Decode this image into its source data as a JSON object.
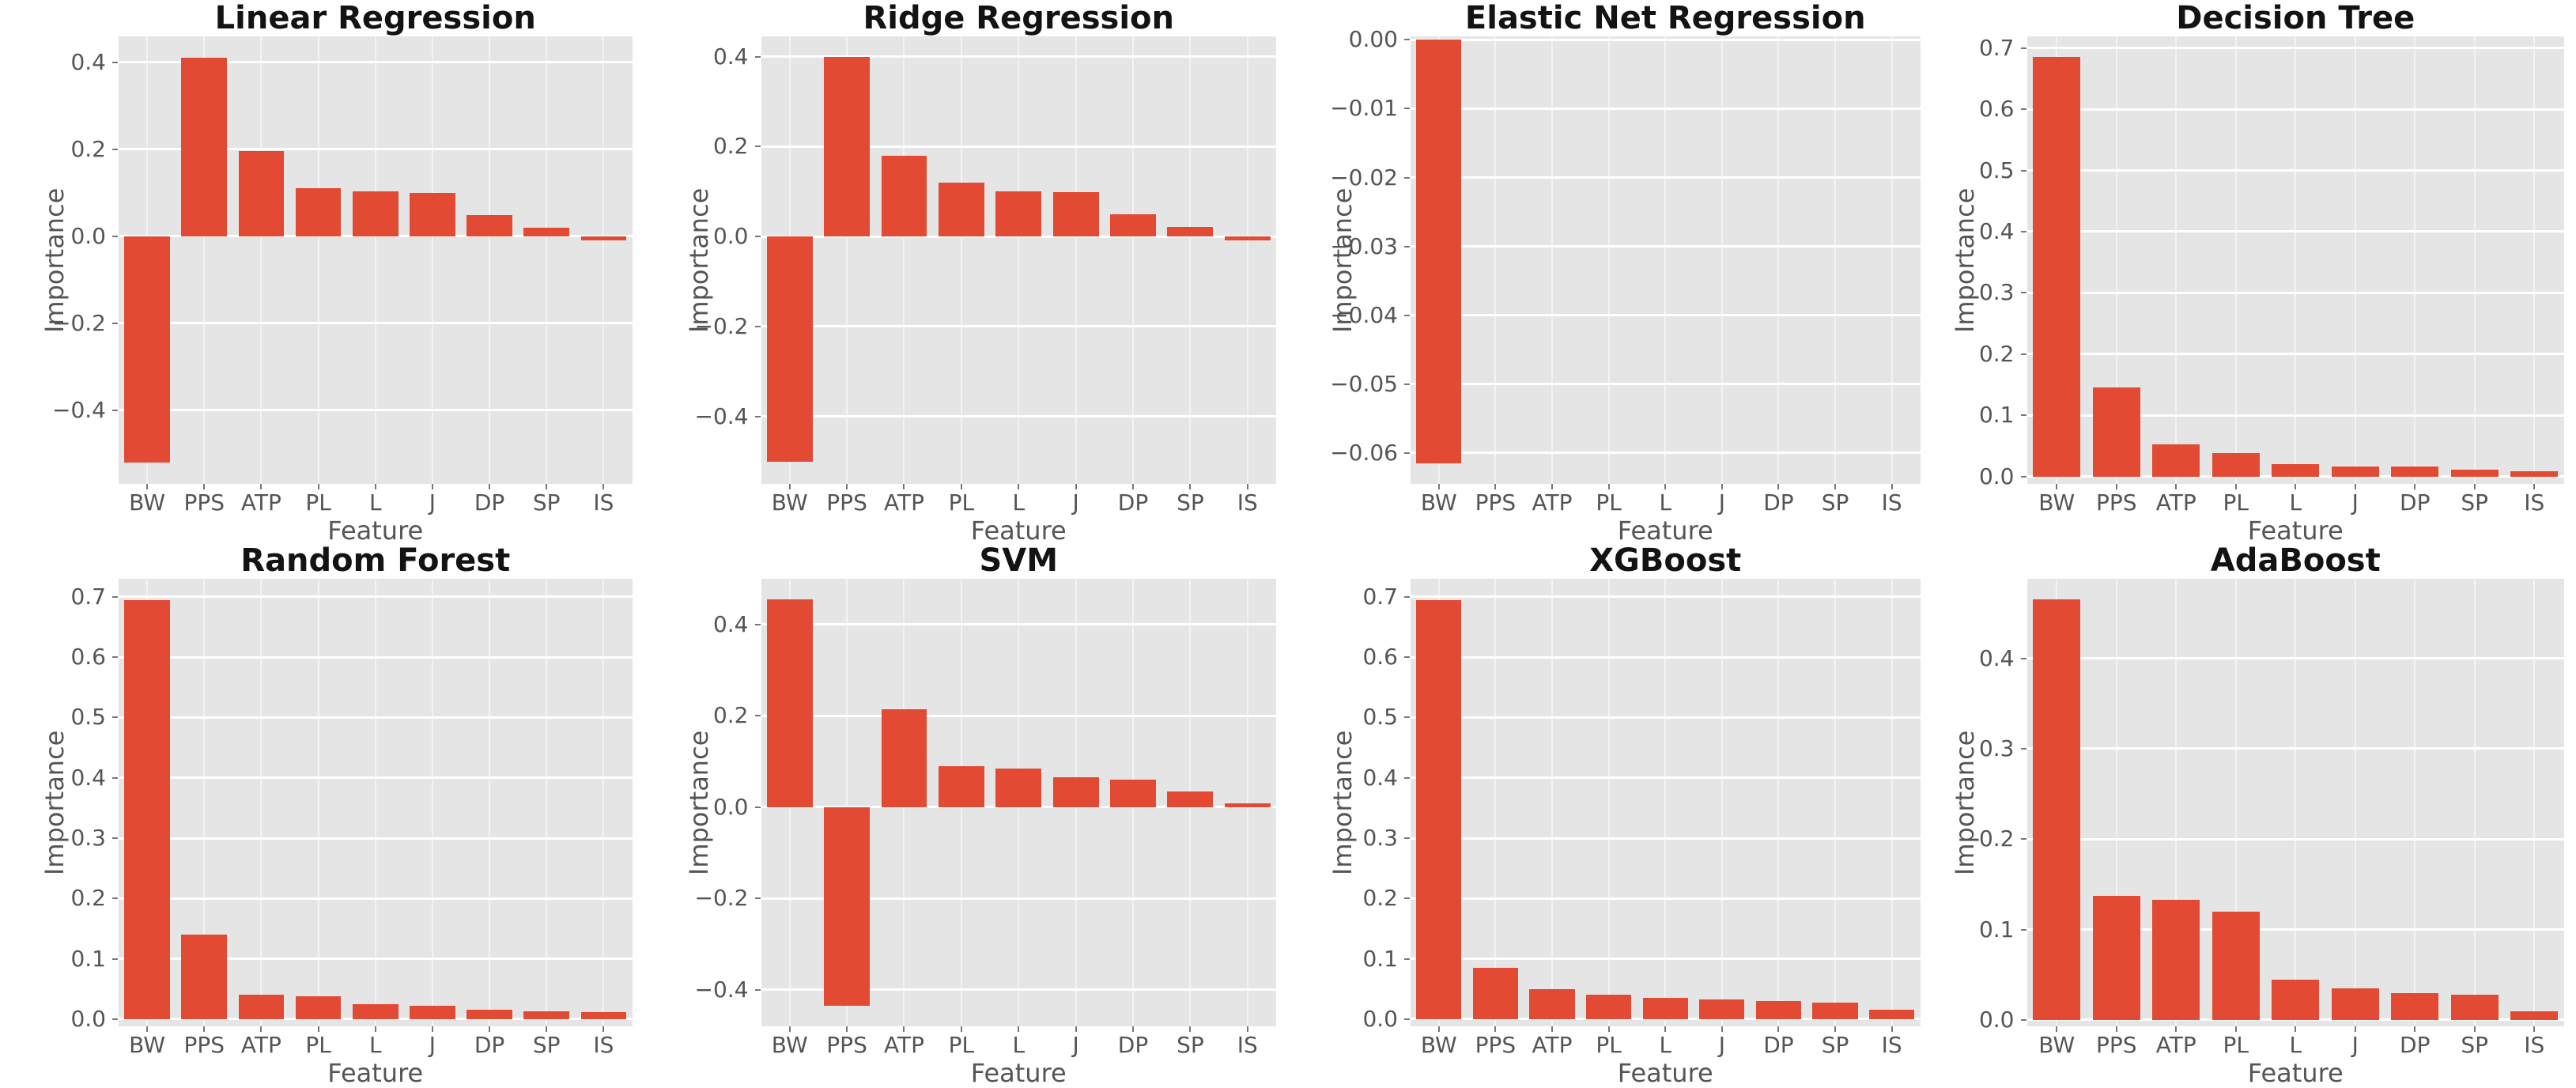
{
  "figure": {
    "kind": "feature-importance-comparison",
    "rows": 2,
    "cols": 4,
    "colors": {
      "figure_background": "#ffffff",
      "panel_background": "#e5e5e5",
      "bar": "#e24a33",
      "grid": "#ffffff",
      "tick_text": "#555555",
      "axis_label_text": "#555555",
      "title_text": "#131313"
    }
  },
  "chart_data": [
    {
      "type": "bar",
      "title": "Linear Regression",
      "xlabel": "Feature",
      "ylabel": "Importance",
      "categories": [
        "BW",
        "PPS",
        "ATP",
        "PL",
        "L",
        "J",
        "DP",
        "SP",
        "IS"
      ],
      "values": [
        -0.52,
        0.41,
        0.197,
        0.11,
        0.103,
        0.1,
        0.048,
        0.02,
        -0.01
      ],
      "ylim": [
        -0.57,
        0.46
      ],
      "yticks": [
        0.4,
        0.2,
        0.0,
        -0.2,
        -0.4
      ],
      "ytick_labels": [
        "0.4",
        "0.2",
        "0.0",
        "−0.2",
        "−0.4"
      ],
      "grid": true,
      "legend": "none"
    },
    {
      "type": "bar",
      "title": "Ridge Regression",
      "xlabel": "Feature",
      "ylabel": "Importance",
      "categories": [
        "BW",
        "PPS",
        "ATP",
        "PL",
        "L",
        "J",
        "DP",
        "SP",
        "IS"
      ],
      "values": [
        -0.5,
        0.4,
        0.18,
        0.12,
        0.1,
        0.098,
        0.05,
        0.021,
        -0.008
      ],
      "ylim": [
        -0.55,
        0.445
      ],
      "yticks": [
        0.4,
        0.2,
        0.0,
        -0.2,
        -0.4
      ],
      "ytick_labels": [
        "0.4",
        "0.2",
        "0.0",
        "−0.2",
        "−0.4"
      ],
      "grid": true,
      "legend": "none"
    },
    {
      "type": "bar",
      "title": "Elastic Net Regression",
      "xlabel": "Feature",
      "ylabel": "Importance",
      "categories": [
        "BW",
        "PPS",
        "ATP",
        "PL",
        "L",
        "J",
        "DP",
        "SP",
        "IS"
      ],
      "values": [
        -0.0615,
        0,
        0,
        0,
        0,
        0,
        0,
        0,
        0
      ],
      "ylim": [
        -0.0645,
        0.0005
      ],
      "yticks": [
        0.0,
        -0.01,
        -0.02,
        -0.03,
        -0.04,
        -0.05,
        -0.06
      ],
      "ytick_labels": [
        "0.00",
        "−0.01",
        "−0.02",
        "−0.03",
        "−0.04",
        "−0.05",
        "−0.06"
      ],
      "grid": true,
      "legend": "none"
    },
    {
      "type": "bar",
      "title": "Decision Tree",
      "xlabel": "Feature",
      "ylabel": "Importance",
      "categories": [
        "BW",
        "PPS",
        "ATP",
        "PL",
        "L",
        "J",
        "DP",
        "SP",
        "IS"
      ],
      "values": [
        0.685,
        0.145,
        0.052,
        0.039,
        0.02,
        0.016,
        0.017,
        0.011,
        0.009
      ],
      "ylim": [
        -0.012,
        0.719
      ],
      "yticks": [
        0.7,
        0.6,
        0.5,
        0.4,
        0.3,
        0.2,
        0.1,
        0.0
      ],
      "ytick_labels": [
        "0.7",
        "0.6",
        "0.5",
        "0.4",
        "0.3",
        "0.2",
        "0.1",
        "0.0"
      ],
      "grid": true,
      "legend": "none"
    },
    {
      "type": "bar",
      "title": "Random Forest",
      "xlabel": "Feature",
      "ylabel": "Importance",
      "categories": [
        "BW",
        "PPS",
        "ATP",
        "PL",
        "L",
        "J",
        "DP",
        "SP",
        "IS"
      ],
      "values": [
        0.695,
        0.14,
        0.04,
        0.038,
        0.025,
        0.022,
        0.016,
        0.013,
        0.011
      ],
      "ylim": [
        -0.012,
        0.73
      ],
      "yticks": [
        0.7,
        0.6,
        0.5,
        0.4,
        0.3,
        0.2,
        0.1,
        0.0
      ],
      "ytick_labels": [
        "0.7",
        "0.6",
        "0.5",
        "0.4",
        "0.3",
        "0.2",
        "0.1",
        "0.0"
      ],
      "grid": true,
      "legend": "none"
    },
    {
      "type": "bar",
      "title": "SVM",
      "xlabel": "Feature",
      "ylabel": "Importance",
      "categories": [
        "BW",
        "PPS",
        "ATP",
        "PL",
        "L",
        "J",
        "DP",
        "SP",
        "IS"
      ],
      "values": [
        0.455,
        -0.435,
        0.215,
        0.09,
        0.085,
        0.065,
        0.06,
        0.035,
        0.008
      ],
      "ylim": [
        -0.48,
        0.5
      ],
      "yticks": [
        0.4,
        0.2,
        0.0,
        -0.2,
        -0.4
      ],
      "ytick_labels": [
        "0.4",
        "0.2",
        "0.0",
        "−0.2",
        "−0.4"
      ],
      "grid": true,
      "legend": "none"
    },
    {
      "type": "bar",
      "title": "XGBoost",
      "xlabel": "Feature",
      "ylabel": "Importance",
      "categories": [
        "BW",
        "PPS",
        "ATP",
        "PL",
        "L",
        "J",
        "DP",
        "SP",
        "IS"
      ],
      "values": [
        0.695,
        0.085,
        0.05,
        0.04,
        0.035,
        0.032,
        0.03,
        0.027,
        0.015
      ],
      "ylim": [
        -0.012,
        0.73
      ],
      "yticks": [
        0.7,
        0.6,
        0.5,
        0.4,
        0.3,
        0.2,
        0.1,
        0.0
      ],
      "ytick_labels": [
        "0.7",
        "0.6",
        "0.5",
        "0.4",
        "0.3",
        "0.2",
        "0.1",
        "0.0"
      ],
      "grid": true,
      "legend": "none"
    },
    {
      "type": "bar",
      "title": "AdaBoost",
      "xlabel": "Feature",
      "ylabel": "Importance",
      "categories": [
        "BW",
        "PPS",
        "ATP",
        "PL",
        "L",
        "J",
        "DP",
        "SP",
        "IS"
      ],
      "values": [
        0.465,
        0.137,
        0.133,
        0.12,
        0.045,
        0.035,
        0.03,
        0.028,
        0.01
      ],
      "ylim": [
        -0.007,
        0.488
      ],
      "yticks": [
        0.4,
        0.3,
        0.2,
        0.1,
        0.0
      ],
      "ytick_labels": [
        "0.4",
        "0.3",
        "0.2",
        "0.1",
        "0.0"
      ],
      "grid": true,
      "legend": "none"
    }
  ]
}
